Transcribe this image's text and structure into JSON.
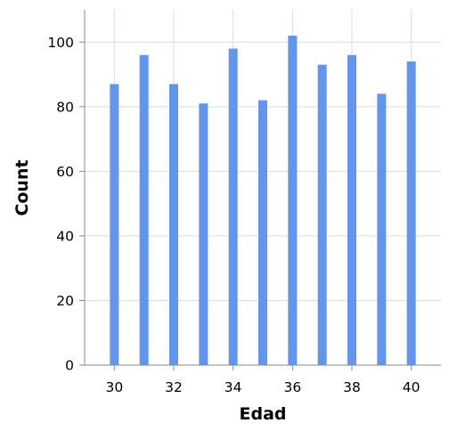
{
  "chart_data": {
    "type": "bar",
    "title": "",
    "xlabel": "Edad",
    "ylabel": "Count",
    "x": [
      30,
      31,
      32,
      33,
      34,
      35,
      36,
      37,
      38,
      39,
      40
    ],
    "values": [
      87,
      96,
      87,
      81,
      98,
      82,
      102,
      93,
      96,
      84,
      94
    ],
    "xlim": [
      29,
      41
    ],
    "ylim": [
      0,
      110
    ],
    "xticks": [
      30,
      32,
      34,
      36,
      38,
      40
    ],
    "yticks": [
      0,
      20,
      40,
      60,
      80,
      100
    ],
    "grid": true,
    "legend": "none",
    "bar_color": "#6495ED",
    "grid_color": "#dddddd",
    "axis_color": "#888888"
  }
}
